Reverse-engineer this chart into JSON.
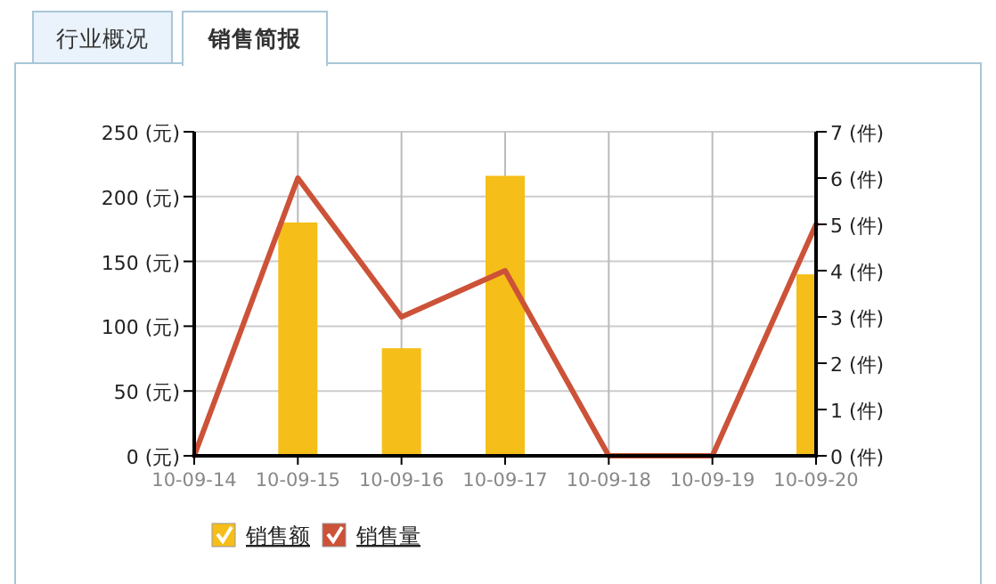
{
  "chart_data": {
    "type": "bar",
    "annotations": [
      "行业概况",
      "销售简报"
    ],
    "categories": [
      "10-09-14",
      "10-09-15",
      "10-09-16",
      "10-09-17",
      "10-09-18",
      "10-09-19",
      "10-09-20"
    ],
    "series": [
      {
        "name": "销售额",
        "color": "#f5be18",
        "values": [
          0,
          180,
          83,
          216,
          0,
          0,
          140
        ]
      },
      {
        "name": "销售量",
        "type": "line",
        "axis": "y2",
        "color": "#cc5238",
        "values": [
          0,
          6,
          3,
          4,
          0,
          0,
          5
        ]
      }
    ],
    "ylim": [
      0,
      250
    ],
    "yticks": [
      {
        "value": 0,
        "label": "0 (元)"
      },
      {
        "value": 50,
        "label": "50 (元)"
      },
      {
        "value": 100,
        "label": "100 (元)"
      },
      {
        "value": 150,
        "label": "150 (元)"
      },
      {
        "value": 200,
        "label": "200 (元)"
      },
      {
        "value": 250,
        "label": "250 (元)"
      }
    ],
    "y2lim": [
      0,
      7
    ],
    "y2ticks": [
      {
        "value": 0,
        "label": "0 (件)"
      },
      {
        "value": 1,
        "label": "1 (件)"
      },
      {
        "value": 2,
        "label": "2 (件)"
      },
      {
        "value": 3,
        "label": "3 (件)"
      },
      {
        "value": 4,
        "label": "4 (件)"
      },
      {
        "value": 5,
        "label": "5 (件)"
      },
      {
        "value": 6,
        "label": "6 (件)"
      },
      {
        "value": 7,
        "label": "7 (件)"
      }
    ],
    "grid": true,
    "legend": "bottom left"
  }
}
